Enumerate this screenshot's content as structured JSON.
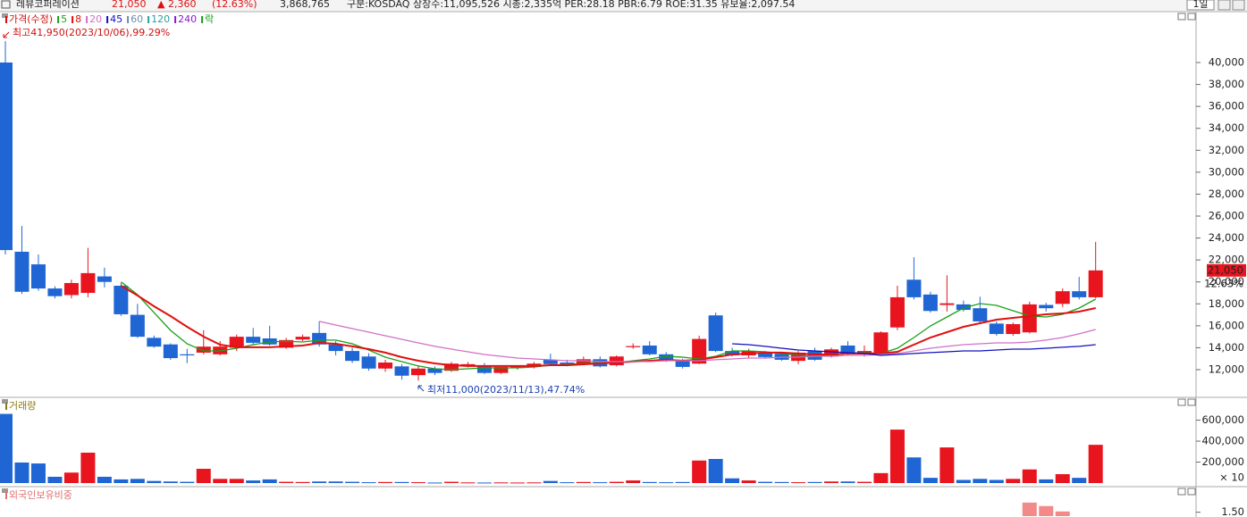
{
  "header": {
    "name": "레뷰코퍼레이션",
    "price": "21,050",
    "change": "▲ 2,360",
    "change_rate": "(12.63%)",
    "volume": "3,868,765",
    "info": "구분:KOSDAQ 상장수:11,095,526 시총:2,335억 PER:28.18 PBR:6.79 ROE:31.35 유보율:2,097.54",
    "period": "1일"
  },
  "chart_data": [
    {
      "type": "candlestick",
      "title": "가격(수정)",
      "title_color": "#d01010",
      "up_color": "#e8141e",
      "down_color": "#1f66d4",
      "categories": [
        null,
        null,
        null,
        null,
        null,
        null,
        null,
        null,
        null,
        null,
        null,
        null,
        null,
        null,
        null,
        null,
        null,
        null,
        null,
        null,
        null,
        null,
        null,
        null,
        null,
        null,
        null,
        null,
        null,
        null,
        null,
        null,
        null,
        null,
        null,
        null,
        null,
        null,
        null,
        null,
        null,
        null,
        null,
        null,
        null,
        null,
        null,
        null,
        null,
        null,
        null,
        null,
        null,
        null,
        null,
        null,
        null,
        null,
        null,
        null,
        null,
        null,
        null,
        null,
        null,
        null,
        null
      ],
      "open": [
        40000,
        22750,
        21600,
        19400,
        18800,
        19000,
        20500,
        19650,
        17000,
        14900,
        14300,
        13400,
        13550,
        13400,
        14000,
        15000,
        14850,
        14000,
        14750,
        15350,
        14300,
        13700,
        13200,
        12100,
        12300,
        11500,
        12100,
        11900,
        12300,
        12300,
        11700,
        12150,
        12250,
        12900,
        12650,
        12500,
        12950,
        12400,
        14050,
        14200,
        13400,
        12900,
        12550,
        16950,
        13700,
        13300,
        13550,
        13450,
        12800,
        13700,
        13200,
        14200,
        13400,
        13550,
        15850,
        20200,
        18850,
        17900,
        17950,
        17600,
        16200,
        15250,
        15400,
        17900,
        18000,
        19150,
        18600
      ],
      "high": [
        41950,
        25100,
        22500,
        19600,
        20200,
        23100,
        21300,
        19900,
        18000,
        15100,
        14400,
        13900,
        15600,
        14600,
        15200,
        15800,
        16000,
        14900,
        15200,
        16400,
        14600,
        14000,
        13500,
        12900,
        12500,
        12400,
        12300,
        12700,
        12700,
        12600,
        12400,
        12400,
        12700,
        13450,
        12900,
        13200,
        13200,
        13300,
        14400,
        14600,
        13600,
        13000,
        15100,
        17200,
        14000,
        13900,
        13700,
        13600,
        13700,
        14000,
        14000,
        14600,
        14200,
        15500,
        19650,
        22250,
        19100,
        20600,
        18300,
        18650,
        16400,
        16300,
        18200,
        18100,
        19400,
        20450,
        23650
      ],
      "low": [
        22500,
        18900,
        19200,
        18500,
        18500,
        18600,
        19500,
        16900,
        14900,
        14000,
        12900,
        12600,
        13400,
        13300,
        13700,
        14300,
        14200,
        13900,
        14600,
        14100,
        13300,
        12600,
        11900,
        11800,
        11100,
        11000,
        11500,
        11800,
        12200,
        11600,
        11600,
        12000,
        12100,
        12400,
        12300,
        12400,
        12200,
        12300,
        13900,
        13300,
        12700,
        12100,
        12500,
        13600,
        13200,
        13100,
        13000,
        12800,
        12500,
        12800,
        13100,
        13300,
        13200,
        13500,
        15600,
        18400,
        17200,
        17300,
        17300,
        16300,
        15100,
        15100,
        15300,
        17300,
        17700,
        18400,
        18500
      ],
      "close": [
        22900,
        19100,
        19400,
        18700,
        19900,
        20800,
        20000,
        17050,
        15000,
        14100,
        13050,
        13300,
        14100,
        14100,
        15000,
        14450,
        14300,
        14700,
        15000,
        14300,
        13700,
        12800,
        12100,
        12650,
        11450,
        12100,
        11700,
        12550,
        12500,
        11700,
        12250,
        12300,
        12550,
        12500,
        12400,
        12950,
        12300,
        13200,
        14150,
        13400,
        12800,
        12250,
        14800,
        13700,
        13300,
        13700,
        13150,
        12900,
        13550,
        12900,
        13850,
        13400,
        13700,
        15400,
        18600,
        18600,
        17350,
        18050,
        17450,
        16400,
        15250,
        16150,
        17950,
        17600,
        19150,
        18600,
        21050
      ],
      "series": [
        {
          "name": "5",
          "color": "#1aa01a",
          "values": [
            null,
            null,
            null,
            null,
            null,
            null,
            null,
            20000,
            18840,
            17200,
            15580,
            14360,
            13710,
            13710,
            13950,
            14280,
            14520,
            14600,
            14520,
            14690,
            14690,
            14360,
            13790,
            13140,
            12730,
            12330,
            12080,
            12000,
            12080,
            12160,
            12160,
            12160,
            12240,
            12410,
            12490,
            12570,
            12650,
            12650,
            12810,
            12980,
            13220,
            13140,
            12980,
            13220,
            13710,
            13710,
            13630,
            13470,
            13300,
            13220,
            13300,
            13470,
            13550,
            13470,
            13950,
            14930,
            15990,
            16800,
            17620,
            18020,
            17860,
            17370,
            16880,
            16800,
            17050,
            17620,
            18430
          ]
        },
        {
          "name": "8",
          "color": "#e01010",
          "values": [
            null,
            null,
            null,
            null,
            null,
            null,
            null,
            19650,
            18760,
            17780,
            16880,
            15910,
            15010,
            14280,
            14040,
            14040,
            14040,
            14120,
            14200,
            14440,
            14360,
            14120,
            13870,
            13550,
            13140,
            12810,
            12570,
            12410,
            12330,
            12330,
            12330,
            12330,
            12330,
            12410,
            12410,
            12490,
            12570,
            12650,
            12730,
            12810,
            12900,
            12810,
            12900,
            13140,
            13380,
            13470,
            13550,
            13550,
            13470,
            13380,
            13380,
            13470,
            13470,
            13470,
            13630,
            14280,
            14930,
            15420,
            15910,
            16230,
            16560,
            16720,
            16880,
            17050,
            17130,
            17290,
            17620
          ]
        },
        {
          "name": "20",
          "color": "#d070c8",
          "values": [
            null,
            null,
            null,
            null,
            null,
            null,
            null,
            null,
            null,
            null,
            null,
            null,
            null,
            null,
            null,
            null,
            null,
            null,
            null,
            16400,
            16070,
            15740,
            15420,
            15090,
            14770,
            14440,
            14120,
            13870,
            13630,
            13380,
            13220,
            13060,
            12980,
            12900,
            12810,
            12810,
            12730,
            12730,
            12730,
            12730,
            12810,
            12810,
            12810,
            12900,
            12980,
            13060,
            13060,
            13140,
            13140,
            13220,
            13220,
            13300,
            13300,
            13380,
            13470,
            13710,
            13950,
            14120,
            14280,
            14360,
            14440,
            14440,
            14520,
            14690,
            14930,
            15260,
            15660
          ]
        },
        {
          "name": "45",
          "color": "#1010c0",
          "values": [
            null,
            null,
            null,
            null,
            null,
            null,
            null,
            null,
            null,
            null,
            null,
            null,
            null,
            null,
            null,
            null,
            null,
            null,
            null,
            null,
            null,
            null,
            null,
            null,
            null,
            null,
            null,
            null,
            null,
            null,
            null,
            null,
            null,
            null,
            null,
            null,
            null,
            null,
            null,
            null,
            null,
            null,
            null,
            null,
            14360,
            14280,
            14120,
            13950,
            13790,
            13710,
            13630,
            13550,
            13470,
            13300,
            13380,
            13470,
            13550,
            13630,
            13710,
            13710,
            13790,
            13870,
            13870,
            13950,
            14040,
            14120,
            14280
          ]
        }
      ],
      "legend_extra": [
        {
          "name": "60",
          "color": "#6a8fb0"
        },
        {
          "name": "120",
          "color": "#2aa0a0"
        },
        {
          "name": "240",
          "color": "#8a1ad0"
        },
        {
          "name": "락",
          "color": "#1aa01a"
        }
      ],
      "annotations": [
        {
          "text": "최고41,950(2023/10/06),99.29%",
          "color": "#d01010"
        },
        {
          "text": "최저11,000(2023/11/13),47.74%",
          "color": "#1a3fb0"
        }
      ],
      "last_label": "21,050",
      "last_change": "12.63%",
      "ylim": [
        9720,
        44560
      ],
      "yticks": [
        {
          "value": 12000,
          "label": "12,000"
        },
        {
          "value": 14000,
          "label": "14,000"
        },
        {
          "value": 16000,
          "label": "16,000"
        },
        {
          "value": 18000,
          "label": "18,000"
        },
        {
          "value": 20000,
          "label": "20,000"
        },
        {
          "value": 22000,
          "label": "22,000"
        },
        {
          "value": 24000,
          "label": "24,000"
        },
        {
          "value": 26000,
          "label": "26,000"
        },
        {
          "value": 28000,
          "label": "28,000"
        },
        {
          "value": 30000,
          "label": "30,000"
        },
        {
          "value": 32000,
          "label": "32,000"
        },
        {
          "value": 34000,
          "label": "34,000"
        },
        {
          "value": 36000,
          "label": "36,000"
        },
        {
          "value": 38000,
          "label": "38,000"
        },
        {
          "value": 40000,
          "label": "40,000"
        }
      ]
    },
    {
      "type": "bar",
      "title": "거래량",
      "title_color": "#8a7a10",
      "color_by": 0,
      "values": [
        660000,
        196000,
        187000,
        60000,
        100000,
        290000,
        60000,
        35000,
        40000,
        20000,
        15000,
        12000,
        136000,
        40000,
        40000,
        25000,
        35000,
        12000,
        10000,
        15000,
        15000,
        12000,
        8000,
        10000,
        10000,
        8000,
        5000,
        12000,
        6000,
        5000,
        6000,
        5000,
        6000,
        20000,
        8000,
        10000,
        8000,
        12000,
        25000,
        10000,
        8000,
        10000,
        215000,
        230000,
        45000,
        25000,
        12000,
        10000,
        8000,
        10000,
        15000,
        15000,
        12000,
        95000,
        510000,
        245000,
        50000,
        340000,
        30000,
        40000,
        30000,
        40000,
        130000,
        35000,
        85000,
        50000,
        365000
      ],
      "unit_label": "× 10",
      "ylim": [
        0,
        690000
      ],
      "yticks": [
        {
          "value": 200000,
          "label": "200,000"
        },
        {
          "value": 400000,
          "label": "400,000"
        },
        {
          "value": 600000,
          "label": "600,000"
        }
      ]
    },
    {
      "type": "bar",
      "title": "외국인보유비중",
      "title_color": "#e07070",
      "color": "#f28a8a",
      "values": [
        null,
        null,
        null,
        null,
        null,
        null,
        null,
        null,
        null,
        null,
        null,
        null,
        null,
        null,
        null,
        null,
        null,
        null,
        null,
        null,
        null,
        null,
        null,
        null,
        null,
        null,
        null,
        null,
        null,
        null,
        null,
        null,
        null,
        null,
        null,
        null,
        null,
        null,
        null,
        null,
        null,
        null,
        null,
        null,
        null,
        null,
        null,
        null,
        null,
        null,
        null,
        null,
        null,
        null,
        null,
        null,
        null,
        null,
        null,
        null,
        null,
        null,
        1.75,
        1.66,
        1.52,
        null,
        null
      ],
      "ylim": [
        1.4,
        2.0
      ],
      "yticks": [
        {
          "value": 1.5,
          "label": "1.50"
        }
      ]
    }
  ]
}
